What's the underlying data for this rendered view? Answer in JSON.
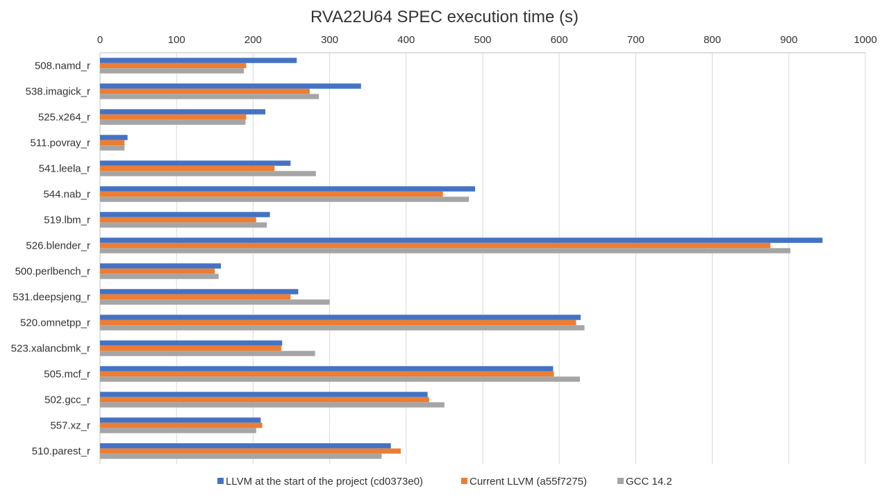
{
  "chart_data": {
    "type": "bar",
    "orientation": "horizontal",
    "title": "RVA22U64 SPEC execution time (s)",
    "xlabel": "",
    "ylabel": "",
    "xlim": [
      0,
      1000
    ],
    "x_ticks": [
      "0",
      "100",
      "200",
      "300",
      "400",
      "500",
      "600",
      "700",
      "800",
      "900",
      "1000"
    ],
    "x_axis_position": "top",
    "grid": true,
    "legend_position": "bottom",
    "categories": [
      "508.namd_r",
      "538.imagick_r",
      "525.x264_r",
      "511.povray_r",
      "541.leela_r",
      "544.nab_r",
      "519.lbm_r",
      "526.blender_r",
      "500.perlbench_r",
      "531.deepsjeng_r",
      "520.omnetpp_r",
      "523.xalancbmk_r",
      "505.mcf_r",
      "502.gcc_r",
      "557.xz_r",
      "510.parest_r"
    ],
    "series": [
      {
        "name": "LLVM at the start of the project (cd0373e0)",
        "color": "#4472C4",
        "values": [
          257,
          341,
          216,
          36,
          249,
          490,
          222,
          944,
          158,
          259,
          628,
          238,
          592,
          428,
          210,
          380
        ]
      },
      {
        "name": "Current LLVM (a55f7275)",
        "color": "#ED7D31",
        "values": [
          191,
          274,
          191,
          32,
          228,
          448,
          204,
          876,
          150,
          249,
          622,
          237,
          593,
          430,
          212,
          393
        ]
      },
      {
        "name": "GCC 14.2",
        "color": "#A5A5A5",
        "values": [
          188,
          286,
          190,
          32,
          282,
          482,
          218,
          902,
          155,
          300,
          633,
          281,
          627,
          450,
          204,
          368
        ]
      }
    ]
  }
}
